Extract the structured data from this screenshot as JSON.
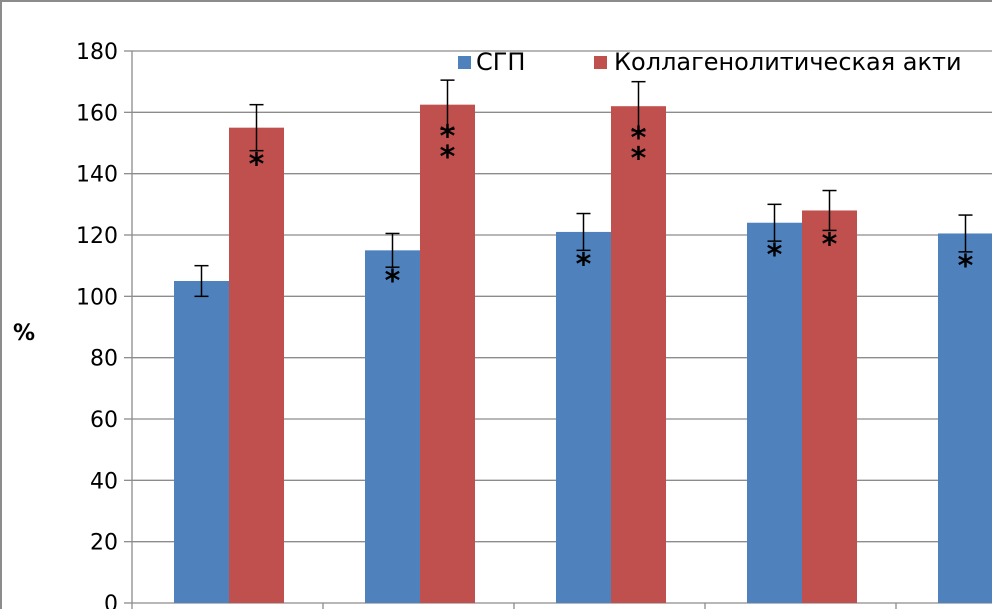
{
  "chart_data": {
    "type": "bar",
    "title": "",
    "xlabel": "",
    "ylabel": "%",
    "ylim": [
      0,
      180
    ],
    "yticks": [
      0,
      20,
      40,
      60,
      80,
      100,
      120,
      140,
      160,
      180
    ],
    "categories": [
      "",
      "",
      "",
      "",
      ""
    ],
    "grid": true,
    "legend_position": "top-right",
    "series": [
      {
        "name": "СГП",
        "color": "#4F81BD",
        "values": [
          105,
          115,
          121,
          124,
          120.5
        ],
        "error": [
          5,
          5.5,
          6,
          6,
          6
        ],
        "significance": [
          [],
          [
            "*"
          ],
          [
            "*"
          ],
          [
            "*"
          ],
          [
            "*"
          ]
        ]
      },
      {
        "name": "Коллагенолитическая акти",
        "color": "#C0504D",
        "values": [
          155,
          162.5,
          162,
          128,
          null
        ],
        "error": [
          7.5,
          8,
          8,
          6.5,
          null
        ],
        "significance": [
          [
            "*"
          ],
          [
            "*",
            "*"
          ],
          [
            "*",
            "*"
          ],
          [
            "*"
          ],
          []
        ]
      }
    ]
  }
}
